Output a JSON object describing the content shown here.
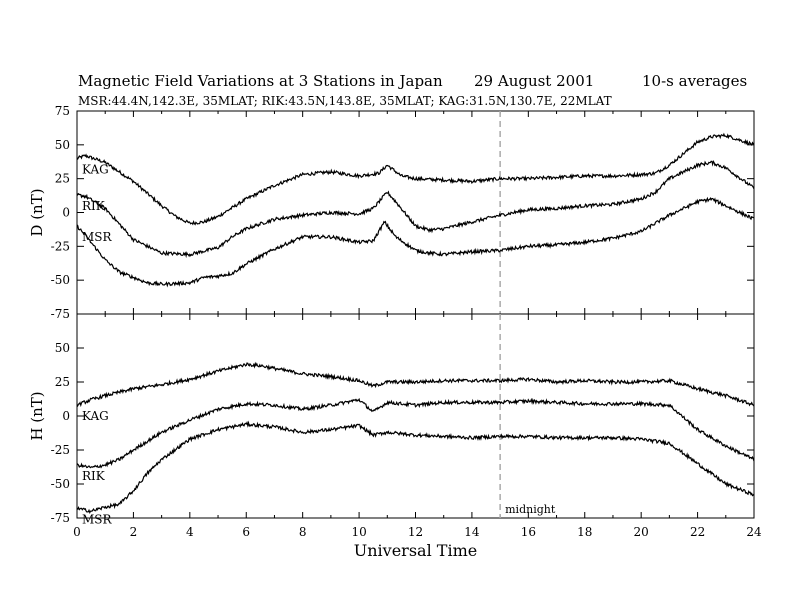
{
  "header": {
    "title": "Magnetic Field Variations at 3 Stations in Japan",
    "date": "29 August  2001",
    "averaging": "10-s averages",
    "subtitle": "MSR:44.4N,142.3E, 35MLAT;  RIK:43.5N,143.8E, 35MLAT;  KAG:31.5N,130.7E, 22MLAT"
  },
  "chart_data": [
    {
      "type": "line",
      "panel": "top",
      "ylabel": "D (nT)",
      "ylim": [
        -75,
        75
      ],
      "yticks": [
        75,
        50,
        25,
        0,
        -25,
        -50,
        -75
      ],
      "xlim": [
        0,
        24
      ],
      "xticks": [
        0,
        2,
        4,
        6,
        8,
        10,
        12,
        14,
        16,
        18,
        20,
        22,
        24
      ],
      "series": [
        {
          "name": "KAG",
          "x": [
            0,
            0.3,
            1,
            2,
            3,
            3.5,
            4,
            4.5,
            5,
            6,
            7,
            8,
            9,
            10,
            10.7,
            11,
            11.5,
            12,
            13,
            14,
            15,
            16,
            17,
            18,
            19,
            20,
            20.5,
            21,
            22,
            22.5,
            23,
            24
          ],
          "y": [
            40,
            42,
            37,
            23,
            5,
            -3,
            -8,
            -7,
            -3,
            10,
            20,
            28,
            30,
            27,
            29,
            35,
            27,
            25,
            24,
            23,
            25,
            25,
            26,
            27,
            27,
            28,
            29,
            35,
            52,
            56,
            57,
            50
          ]
        },
        {
          "name": "RIK",
          "x": [
            0,
            0.3,
            1,
            2,
            3,
            4,
            5,
            5.5,
            6,
            7,
            8,
            9,
            10,
            10.5,
            11,
            11.3,
            12,
            12.5,
            13,
            14,
            15,
            16,
            17,
            18,
            19,
            20,
            20.5,
            21,
            22,
            22.5,
            23,
            24
          ],
          "y": [
            13,
            12,
            3,
            -20,
            -30,
            -31,
            -26,
            -18,
            -12,
            -5,
            -2,
            0,
            -1,
            3,
            15,
            8,
            -10,
            -13,
            -12,
            -7,
            -2,
            2,
            3,
            5,
            6,
            10,
            15,
            25,
            35,
            37,
            33,
            18
          ]
        },
        {
          "name": "MSR",
          "x": [
            0,
            0.3,
            1,
            1.5,
            2,
            2.5,
            3,
            4,
            4.5,
            5,
            5.5,
            6,
            7,
            8,
            9,
            10,
            10.5,
            10.9,
            11.3,
            12,
            12.5,
            13,
            14,
            15,
            16,
            17,
            18,
            19,
            20,
            20.5,
            21,
            22,
            22.5,
            23,
            24
          ],
          "y": [
            -10,
            -17,
            -35,
            -44,
            -48,
            -52,
            -53,
            -52,
            -48,
            -47,
            -45,
            -38,
            -27,
            -18,
            -18,
            -22,
            -21,
            -7,
            -18,
            -28,
            -30,
            -31,
            -29,
            -28,
            -25,
            -24,
            -22,
            -19,
            -14,
            -8,
            -2,
            8,
            10,
            5,
            -5
          ]
        }
      ],
      "annotations": []
    },
    {
      "type": "line",
      "panel": "bottom",
      "ylabel": "H (nT)",
      "ylim": [
        -75,
        75
      ],
      "yticks": [
        50,
        25,
        0,
        -25,
        -50,
        -75
      ],
      "xlim": [
        0,
        24
      ],
      "xticks": [
        0,
        2,
        4,
        6,
        8,
        10,
        12,
        14,
        16,
        18,
        20,
        22,
        24
      ],
      "xlabel": "Universal Time",
      "series": [
        {
          "name": "KAG",
          "x": [
            0,
            0.5,
            1,
            2,
            3,
            4,
            5,
            6,
            6.5,
            7,
            8,
            9,
            10,
            10.5,
            11,
            12,
            13,
            14,
            15,
            16,
            17,
            18,
            19,
            20,
            21,
            22,
            23,
            24
          ],
          "y": [
            8,
            12,
            15,
            20,
            23,
            27,
            33,
            38,
            37,
            35,
            31,
            29,
            26,
            22,
            25,
            25,
            26,
            26,
            26,
            27,
            25,
            26,
            25,
            25,
            26,
            20,
            15,
            8
          ]
        },
        {
          "name": "RIK",
          "x": [
            0,
            0.5,
            1,
            1.5,
            2,
            3,
            4,
            5,
            6,
            7,
            8,
            9,
            10,
            10.5,
            11,
            12,
            13,
            14,
            15,
            16,
            17,
            18,
            19,
            20,
            21,
            22,
            23,
            24
          ],
          "y": [
            -36,
            -38,
            -36,
            -32,
            -25,
            -12,
            -3,
            5,
            9,
            8,
            5,
            8,
            12,
            3,
            10,
            8,
            10,
            10,
            10,
            11,
            10,
            9,
            9,
            9,
            8,
            -10,
            -22,
            -32
          ]
        },
        {
          "name": "MSR",
          "x": [
            0,
            0.5,
            1,
            1.5,
            2,
            2.5,
            3,
            4,
            5,
            6,
            7,
            8,
            9,
            10,
            10.5,
            11,
            12,
            13,
            14,
            15,
            16,
            17,
            18,
            19,
            20,
            21,
            22,
            23,
            24
          ],
          "y": [
            -68,
            -70,
            -67,
            -65,
            -55,
            -42,
            -32,
            -17,
            -10,
            -6,
            -8,
            -12,
            -10,
            -7,
            -14,
            -12,
            -14,
            -15,
            -16,
            -15,
            -15,
            -16,
            -16,
            -16,
            -17,
            -20,
            -35,
            -50,
            -58
          ]
        }
      ],
      "annotations": [
        {
          "text": "midnight",
          "x": 15
        }
      ]
    }
  ],
  "midnight_ut": 15,
  "colors": {
    "line": "#000000",
    "dashed": "#aaaaaa",
    "background": "#ffffff"
  }
}
